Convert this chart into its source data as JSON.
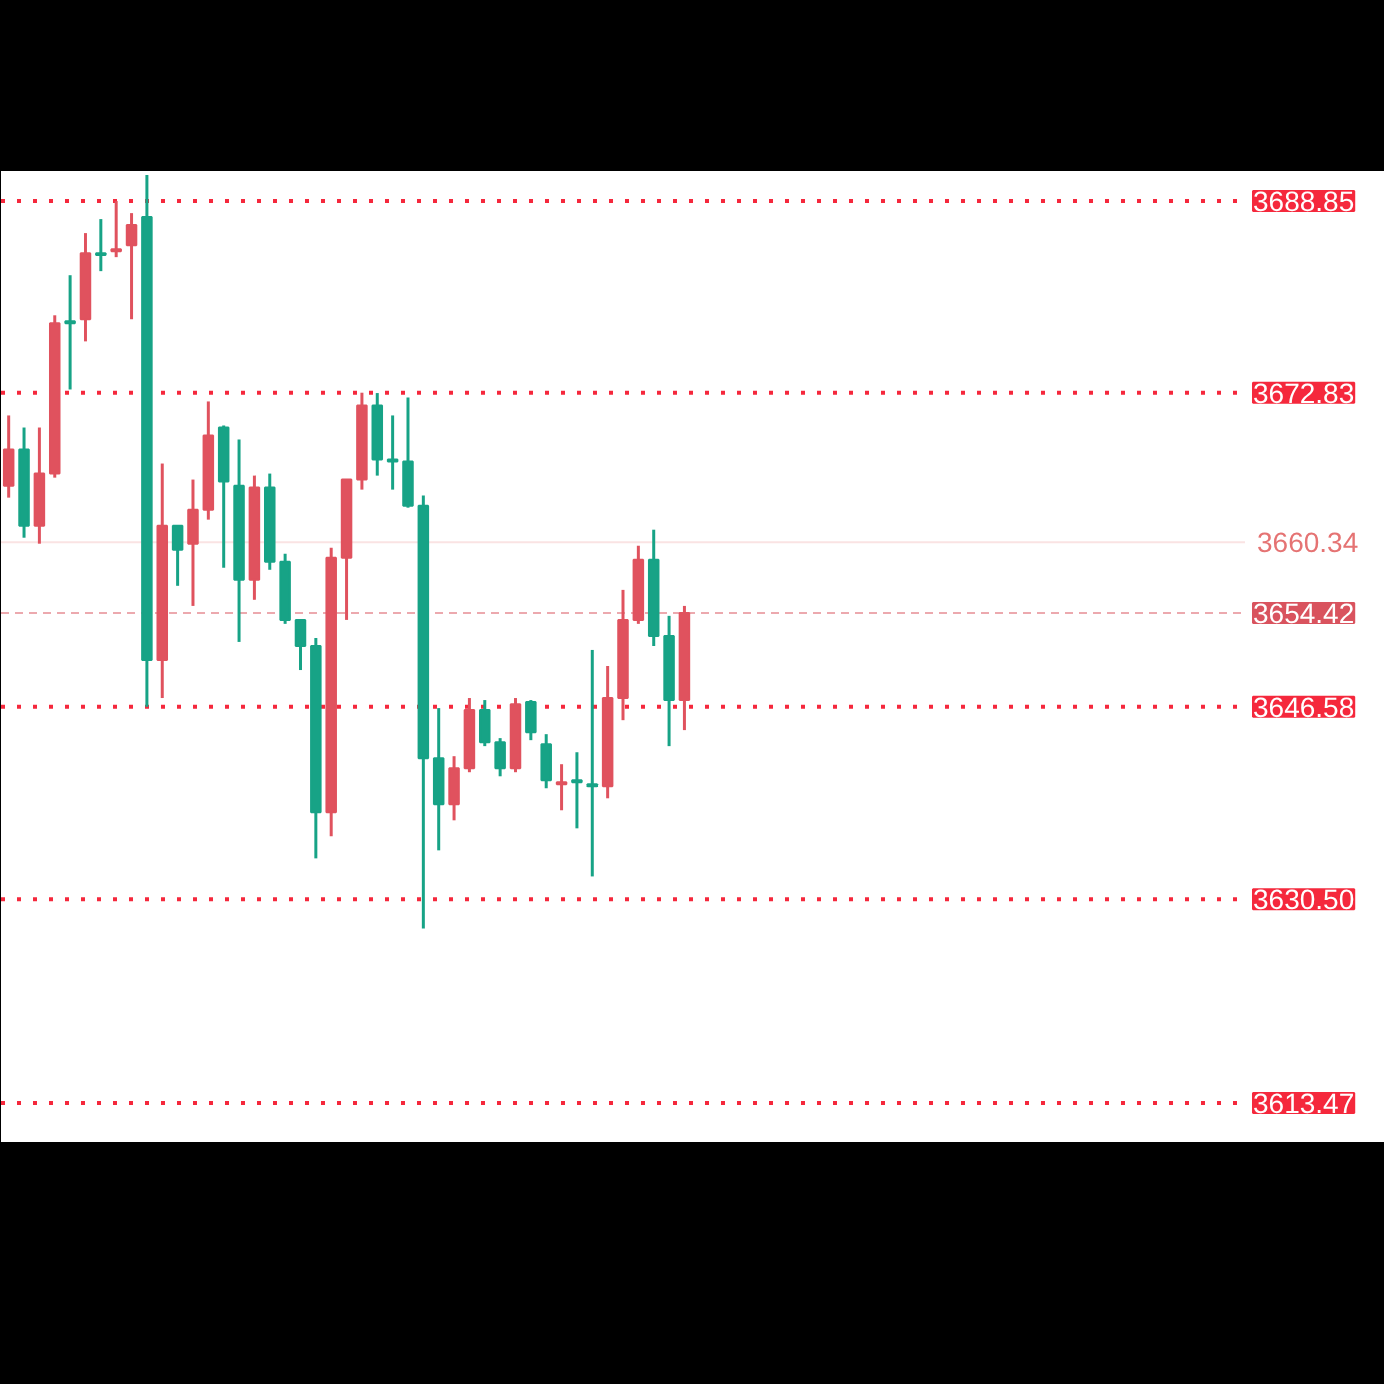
{
  "chart_data": {
    "type": "candlestick",
    "ylim": [
      3610.12,
      3691.36
    ],
    "tick_labels": false,
    "categories": [
      null,
      null,
      null,
      null,
      null,
      null,
      null,
      null,
      null,
      null,
      null,
      null,
      null,
      null,
      null,
      null,
      null,
      null,
      null,
      null,
      null,
      null,
      null,
      null,
      null,
      null,
      null,
      null,
      null,
      null,
      null,
      null,
      null,
      null,
      null,
      null,
      null,
      null,
      null,
      null,
      null,
      null,
      null,
      null,
      null,
      null,
      null,
      null,
      null,
      null,
      null,
      null,
      null,
      null,
      null,
      null,
      null,
      null,
      null,
      null,
      null,
      null,
      null,
      null,
      null,
      null,
      null,
      null,
      null,
      null,
      null,
      null,
      null,
      null,
      null,
      null,
      null,
      null,
      null,
      null,
      null
    ],
    "ohlc": [
      [
        3665.06,
        3670.93,
        3664.06,
        3668.08
      ],
      [
        3668.08,
        3669.92,
        3660.71,
        3661.71
      ],
      [
        3661.71,
        3669.92,
        3660.21,
        3666.07
      ],
      [
        3666.07,
        3679.3,
        3665.73,
        3678.63
      ],
      [
        3678.8,
        3682.65,
        3673.1,
        3678.63
      ],
      [
        3678.97,
        3686.17,
        3677.12,
        3684.49
      ],
      [
        3684.49,
        3687.34,
        3682.99,
        3684.33
      ],
      [
        3684.66,
        3688.85,
        3684.16,
        3684.83
      ],
      [
        3685.16,
        3687.84,
        3678.97,
        3686.84
      ],
      [
        3687.51,
        3691.03,
        3646.58,
        3650.49
      ],
      [
        3650.49,
        3666.91,
        3647.31,
        3661.71
      ],
      [
        3661.71,
        3661.71,
        3656.69,
        3659.7
      ],
      [
        3660.21,
        3665.57,
        3655.01,
        3663.05
      ],
      [
        3663.05,
        3672.1,
        3662.22,
        3669.25
      ],
      [
        3669.92,
        3670.09,
        3658.2,
        3665.4
      ],
      [
        3665.06,
        3668.92,
        3652.0,
        3657.19
      ],
      [
        3657.19,
        3665.9,
        3655.52,
        3664.9
      ],
      [
        3664.9,
        3666.07,
        3658.03,
        3658.7
      ],
      [
        3658.7,
        3659.37,
        3653.51,
        3653.84
      ],
      [
        3653.84,
        3653.84,
        3649.65,
        3651.66
      ],
      [
        3651.66,
        3652.33,
        3633.91,
        3637.76
      ],
      [
        3637.76,
        3659.87,
        3635.75,
        3659.03
      ],
      [
        3659.03,
        3665.57,
        3653.84,
        3665.57
      ],
      [
        3665.57,
        3672.83,
        3664.73,
        3671.76
      ],
      [
        3671.76,
        3672.8,
        3665.9,
        3667.24
      ],
      [
        3667.24,
        3670.93,
        3664.73,
        3667.07
      ],
      [
        3667.07,
        3672.43,
        3663.22,
        3663.39
      ],
      [
        3663.39,
        3664.23,
        3628.04,
        3642.28
      ],
      [
        3642.28,
        3646.47,
        3634.58,
        3638.43
      ],
      [
        3638.43,
        3642.45,
        3637.09,
        3641.44
      ],
      [
        3641.44,
        3647.31,
        3641.11,
        3646.3
      ],
      [
        3646.3,
        3647.14,
        3643.29,
        3643.62
      ],
      [
        3643.62,
        3643.96,
        3640.77,
        3641.44
      ],
      [
        3641.44,
        3647.31,
        3641.11,
        3646.8
      ],
      [
        3646.97,
        3647.14,
        3643.79,
        3644.46
      ],
      [
        3643.45,
        3644.29,
        3639.77,
        3640.44
      ],
      [
        3640.1,
        3641.78,
        3637.93,
        3640.27
      ],
      [
        3640.44,
        3642.78,
        3636.42,
        3640.27
      ],
      [
        3640.1,
        3651.33,
        3632.4,
        3639.94
      ],
      [
        3639.94,
        3649.99,
        3638.93,
        3647.31
      ],
      [
        3647.31,
        3656.35,
        3645.46,
        3653.84
      ],
      [
        3653.84,
        3660.04,
        3653.51,
        3658.87
      ],
      [
        3658.87,
        3661.38,
        3651.66,
        3652.5
      ],
      [
        3652.5,
        3654.18,
        3643.29,
        3647.14
      ],
      [
        3647.14,
        3655.01,
        3644.63,
        3654.42
      ],
      null,
      null,
      null,
      null,
      null,
      null,
      null,
      null,
      null,
      null,
      null,
      null,
      null,
      null,
      null,
      null,
      null,
      null,
      null,
      null,
      null,
      null,
      null,
      null,
      null,
      null,
      null,
      null,
      null,
      null,
      null,
      null,
      null,
      null,
      null,
      null
    ],
    "colors": [
      "#e0525e",
      "#17a386",
      "#e0525e",
      "#e0525e",
      "#17a386",
      "#e0525e",
      "#17a386",
      "#e0525e",
      "#e0525e",
      "#17a386",
      "#e0525e",
      "#17a386",
      "#e0525e",
      "#e0525e",
      "#17a386",
      "#17a386",
      "#e0525e",
      "#17a386",
      "#17a386",
      "#17a386",
      "#17a386",
      "#e0525e",
      "#e0525e",
      "#e0525e",
      "#17a386",
      "#17a386",
      "#17a386",
      "#17a386",
      "#17a386",
      "#e0525e",
      "#e0525e",
      "#17a386",
      "#17a386",
      "#e0525e",
      "#17a386",
      "#17a386",
      "#e0525e",
      "#17a386",
      "#17a386",
      "#e0525e",
      "#e0525e",
      "#e0525e",
      "#17a386",
      "#17a386",
      "#e0525e",
      null,
      null,
      null,
      null,
      null,
      null,
      null,
      null,
      null,
      null,
      null,
      null,
      null,
      null,
      null,
      null,
      null,
      null,
      null,
      null,
      null,
      null,
      null,
      null,
      null,
      null,
      null,
      null,
      null,
      null,
      null,
      null,
      null,
      null,
      null,
      null
    ],
    "ref_lines": [
      {
        "axis": "y",
        "value": 3688.85,
        "label": "3688.85",
        "color": "#f5283c",
        "line_style": "dotted"
      },
      {
        "axis": "y",
        "value": 3672.83,
        "label": "3672.83",
        "color": "#f5283c",
        "line_style": "dotted"
      },
      {
        "axis": "y",
        "value": 3660.34,
        "label": "3660.34",
        "color": "#e57373",
        "line_style": "solid"
      },
      {
        "axis": "y",
        "value": 3654.42,
        "label": "3654.42",
        "color": "#d9535e",
        "line_style": "dashed"
      },
      {
        "axis": "y",
        "value": 3646.58,
        "label": "3646.58",
        "color": "#f5283c",
        "line_style": "dotted"
      },
      {
        "axis": "y",
        "value": 3630.5,
        "label": "3630.50",
        "color": "#f5283c",
        "line_style": "dotted"
      },
      {
        "axis": "y",
        "value": 3613.47,
        "label": "3613.47",
        "color": "#f5283c",
        "line_style": "dotted"
      }
    ]
  }
}
